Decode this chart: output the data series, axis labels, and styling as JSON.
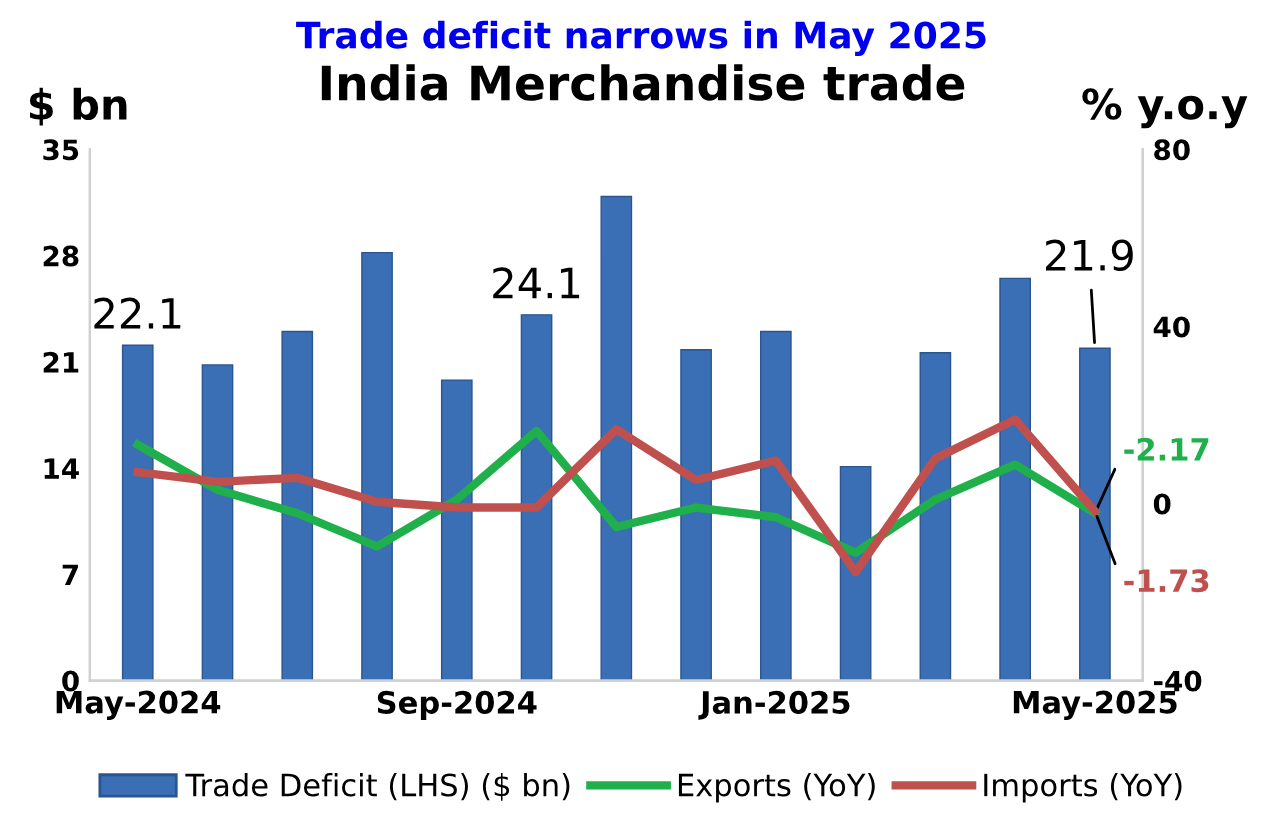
{
  "chart_data": {
    "type": "bar",
    "title": "Trade deficit narrows in May 2025",
    "subtitle": "India Merchandise trade",
    "ylabel": "$ bn",
    "y2label": "% y.o.y",
    "categories": [
      "May-2024",
      null,
      null,
      null,
      "Sep-2024",
      null,
      null,
      null,
      "Jan-2025",
      null,
      null,
      null,
      "May-2025"
    ],
    "series": [
      {
        "name": "Trade Deficit (LHS) ($ bn)",
        "color": "#3a6fb5",
        "values": [
          22.1,
          20.8,
          23.0,
          28.2,
          19.8,
          24.1,
          31.9,
          21.8,
          23.0,
          14.1,
          21.6,
          26.5,
          21.9
        ],
        "value_labels": [
          "22.1",
          null,
          null,
          null,
          null,
          "24.1",
          null,
          null,
          null,
          null,
          null,
          null,
          "21.9"
        ]
      },
      {
        "name": "Exports (YoY)",
        "type": "line",
        "axis": "y2",
        "color": "#1fb04b",
        "values": [
          13.3,
          3.1,
          -2.2,
          -9.7,
          0.9,
          16.4,
          -5.3,
          -0.9,
          -3.1,
          -11.1,
          0.9,
          8.8,
          -2.17
        ],
        "value_labels": [
          null,
          null,
          null,
          null,
          null,
          null,
          null,
          null,
          null,
          null,
          null,
          null,
          "-2.17"
        ]
      },
      {
        "name": "Imports (YoY)",
        "type": "line",
        "axis": "y2",
        "color": "#c0504d",
        "values": [
          7.1,
          4.9,
          5.8,
          0.4,
          -0.9,
          -0.9,
          16.8,
          5.3,
          9.7,
          -15.5,
          10.2,
          19.0,
          -1.73
        ],
        "value_labels": [
          null,
          null,
          null,
          null,
          null,
          null,
          null,
          null,
          null,
          null,
          null,
          null,
          "-1.73"
        ]
      }
    ],
    "ylim": [
      0,
      35
    ],
    "yticks": [
      0,
      7,
      14,
      21,
      28,
      35
    ],
    "y2lim": [
      -40,
      80
    ],
    "y2ticks": [
      -40,
      0,
      40,
      80
    ],
    "grid": false,
    "legend": "bottom",
    "marker": "none",
    "line_style": "solid"
  }
}
